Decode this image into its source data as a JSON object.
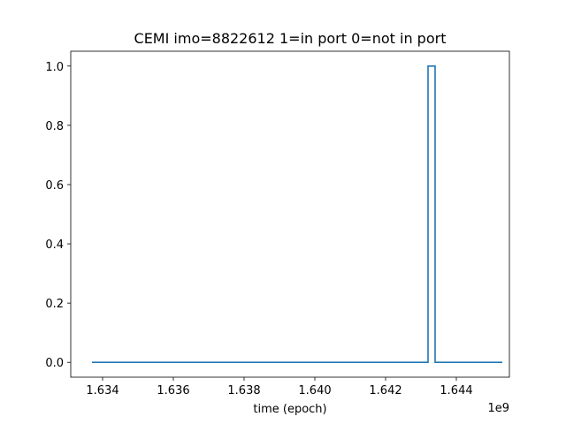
{
  "chart_data": {
    "type": "line",
    "title": "CEMI imo=8822612 1=in port 0=not in port",
    "xlabel": "time (epoch)",
    "ylabel": "",
    "x_offset_label": "1e9",
    "x_scale": 1000000000,
    "xlim": [
      1.6331,
      1.6455
    ],
    "ylim": [
      -0.05,
      1.05
    ],
    "x_ticks": [
      1.634,
      1.636,
      1.638,
      1.64,
      1.642,
      1.644
    ],
    "x_tick_labels": [
      "1.634",
      "1.636",
      "1.638",
      "1.640",
      "1.642",
      "1.644"
    ],
    "y_ticks": [
      0.0,
      0.2,
      0.4,
      0.6,
      0.8,
      1.0
    ],
    "y_tick_labels": [
      "0.0",
      "0.2",
      "0.4",
      "0.6",
      "0.8",
      "1.0"
    ],
    "grid": false,
    "series": [
      {
        "color": "#1f77b4",
        "x": [
          1.6337,
          1.6432,
          1.6432,
          1.6434,
          1.6434,
          1.6453
        ],
        "y": [
          0,
          0,
          1,
          1,
          0,
          0
        ]
      }
    ]
  }
}
